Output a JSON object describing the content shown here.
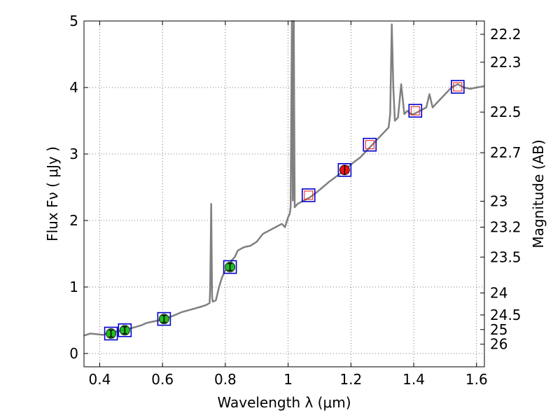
{
  "chart_data": {
    "type": "line",
    "xlabel": "Wavelength  λ (μm)",
    "ylabel": "Flux  Fν  ( μJy )",
    "ylabel_right": "Magnitude (AB)",
    "xlim": [
      0.35,
      1.625
    ],
    "ylim": [
      -0.2,
      5.0
    ],
    "grid": true,
    "x_ticks": [
      0.4,
      0.6,
      0.8,
      1.0,
      1.2,
      1.4,
      1.6
    ],
    "x_tick_labels": [
      "0.4",
      "0.6",
      "0.8",
      "1",
      "1.2",
      "1.4",
      "1.6"
    ],
    "y_ticks": [
      0,
      1,
      2,
      3,
      4,
      5
    ],
    "y_tick_labels": [
      "0",
      "1",
      "2",
      "3",
      "4",
      "5"
    ],
    "right_ticks": [
      {
        "label": "22.2",
        "flux": 4.8
      },
      {
        "label": "22.3",
        "flux": 4.38
      },
      {
        "label": "22.5",
        "flux": 3.63
      },
      {
        "label": "22.7",
        "flux": 3.02
      },
      {
        "label": "23",
        "flux": 2.29
      },
      {
        "label": "23.2",
        "flux": 1.9
      },
      {
        "label": "23.5",
        "flux": 1.45
      },
      {
        "label": "24",
        "flux": 0.91
      },
      {
        "label": "24.5",
        "flux": 0.58
      },
      {
        "label": "25",
        "flux": 0.36
      },
      {
        "label": "26",
        "flux": 0.14
      }
    ],
    "series": [
      {
        "style": "line",
        "color": "#808080",
        "points": [
          [
            0.35,
            0.27
          ],
          [
            0.37,
            0.3
          ],
          [
            0.39,
            0.29
          ],
          [
            0.41,
            0.28
          ],
          [
            0.43,
            0.31
          ],
          [
            0.45,
            0.33
          ],
          [
            0.47,
            0.34
          ],
          [
            0.5,
            0.38
          ],
          [
            0.53,
            0.42
          ],
          [
            0.55,
            0.46
          ],
          [
            0.57,
            0.48
          ],
          [
            0.59,
            0.5
          ],
          [
            0.61,
            0.53
          ],
          [
            0.63,
            0.56
          ],
          [
            0.66,
            0.62
          ],
          [
            0.69,
            0.66
          ],
          [
            0.72,
            0.7
          ],
          [
            0.74,
            0.73
          ],
          [
            0.75,
            0.76
          ],
          [
            0.752,
            1.0
          ],
          [
            0.755,
            2.25
          ],
          [
            0.758,
            0.85
          ],
          [
            0.76,
            0.78
          ],
          [
            0.77,
            0.8
          ],
          [
            0.78,
            1.0
          ],
          [
            0.79,
            1.15
          ],
          [
            0.8,
            1.25
          ],
          [
            0.81,
            1.28
          ],
          [
            0.82,
            1.4
          ],
          [
            0.83,
            1.45
          ],
          [
            0.84,
            1.55
          ],
          [
            0.86,
            1.6
          ],
          [
            0.88,
            1.62
          ],
          [
            0.9,
            1.68
          ],
          [
            0.92,
            1.8
          ],
          [
            0.94,
            1.85
          ],
          [
            0.96,
            1.9
          ],
          [
            0.98,
            1.95
          ],
          [
            0.99,
            1.9
          ],
          [
            1.0,
            2.05
          ],
          [
            1.005,
            2.1
          ],
          [
            1.008,
            2.2
          ],
          [
            1.012,
            5.0
          ],
          [
            1.015,
            2.3
          ],
          [
            1.018,
            5.0
          ],
          [
            1.021,
            2.2
          ],
          [
            1.03,
            2.25
          ],
          [
            1.05,
            2.3
          ],
          [
            1.07,
            2.35
          ],
          [
            1.09,
            2.42
          ],
          [
            1.11,
            2.5
          ],
          [
            1.13,
            2.58
          ],
          [
            1.15,
            2.65
          ],
          [
            1.17,
            2.72
          ],
          [
            1.19,
            2.8
          ],
          [
            1.21,
            2.88
          ],
          [
            1.23,
            2.95
          ],
          [
            1.25,
            3.05
          ],
          [
            1.27,
            3.15
          ],
          [
            1.29,
            3.25
          ],
          [
            1.31,
            3.35
          ],
          [
            1.32,
            3.4
          ],
          [
            1.325,
            3.6
          ],
          [
            1.33,
            4.95
          ],
          [
            1.335,
            4.0
          ],
          [
            1.34,
            3.5
          ],
          [
            1.35,
            3.55
          ],
          [
            1.36,
            4.05
          ],
          [
            1.37,
            3.6
          ],
          [
            1.38,
            3.65
          ],
          [
            1.39,
            3.6
          ],
          [
            1.4,
            3.6
          ],
          [
            1.42,
            3.65
          ],
          [
            1.44,
            3.7
          ],
          [
            1.45,
            3.9
          ],
          [
            1.46,
            3.7
          ],
          [
            1.48,
            3.8
          ],
          [
            1.5,
            3.9
          ],
          [
            1.52,
            4.0
          ],
          [
            1.54,
            4.05
          ],
          [
            1.56,
            4.0
          ],
          [
            1.58,
            3.98
          ],
          [
            1.6,
            4.0
          ],
          [
            1.625,
            4.02
          ]
        ]
      },
      {
        "style": "green-points",
        "color": "#22bb22",
        "points": [
          [
            0.436,
            0.3
          ],
          [
            0.48,
            0.35
          ],
          [
            0.605,
            0.52
          ],
          [
            0.815,
            1.3
          ]
        ]
      },
      {
        "style": "red-point",
        "color": "#ee1111",
        "points": [
          [
            1.18,
            2.76
          ]
        ]
      },
      {
        "style": "open-red-squares",
        "color": "#ee1111",
        "points": [
          [
            1.065,
            2.38
          ],
          [
            1.26,
            3.14
          ],
          [
            1.405,
            3.65
          ],
          [
            1.54,
            4.01
          ]
        ]
      },
      {
        "style": "open-blue-squares",
        "color": "#0000cc",
        "points": [
          [
            0.436,
            0.3
          ],
          [
            0.48,
            0.35
          ],
          [
            0.605,
            0.52
          ],
          [
            0.815,
            1.3
          ],
          [
            1.065,
            2.38
          ],
          [
            1.18,
            2.76
          ],
          [
            1.26,
            3.14
          ],
          [
            1.405,
            3.65
          ],
          [
            1.54,
            4.01
          ]
        ]
      }
    ]
  }
}
